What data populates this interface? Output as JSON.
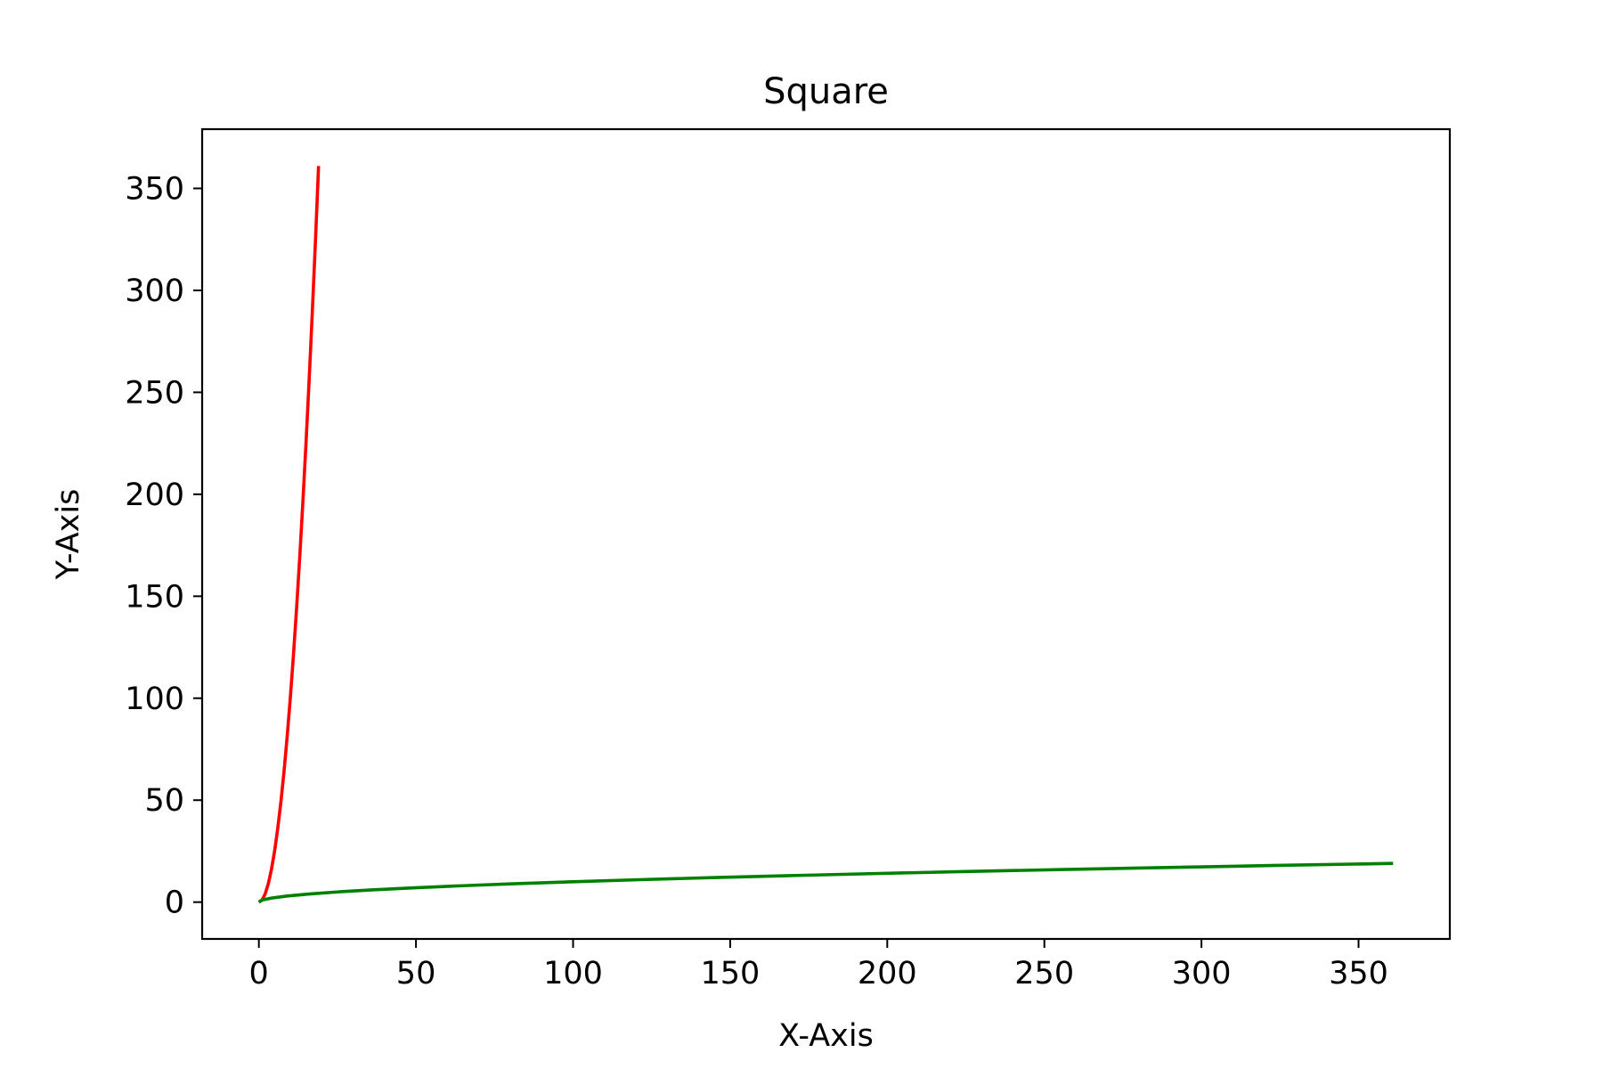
{
  "chart_data": {
    "type": "line",
    "title": "Square",
    "xlabel": "X-Axis",
    "ylabel": "Y-Axis",
    "xlim": [
      -18.05,
      379.05
    ],
    "ylim": [
      -18.05,
      379.05
    ],
    "xticks": [
      0,
      50,
      100,
      150,
      200,
      250,
      300,
      350
    ],
    "yticks": [
      0,
      50,
      100,
      150,
      200,
      250,
      300,
      350
    ],
    "grid": false,
    "legend": "none",
    "series": [
      {
        "color": "#ff0000",
        "x": [
          0,
          1,
          2,
          3,
          4,
          5,
          6,
          7,
          8,
          9,
          10,
          11,
          12,
          13,
          14,
          15,
          16,
          17,
          18,
          19
        ],
        "y": [
          0,
          1,
          4,
          9,
          16,
          25,
          36,
          49,
          64,
          81,
          100,
          121,
          144,
          169,
          196,
          225,
          256,
          289,
          324,
          361
        ]
      },
      {
        "color": "#008000",
        "x": [
          0,
          1,
          4,
          9,
          16,
          25,
          36,
          49,
          64,
          81,
          100,
          121,
          144,
          169,
          196,
          225,
          256,
          289,
          324,
          361
        ],
        "y": [
          0,
          1,
          2,
          3,
          4,
          5,
          6,
          7,
          8,
          9,
          10,
          11,
          12,
          13,
          14,
          15,
          16,
          17,
          18,
          19
        ]
      }
    ]
  }
}
